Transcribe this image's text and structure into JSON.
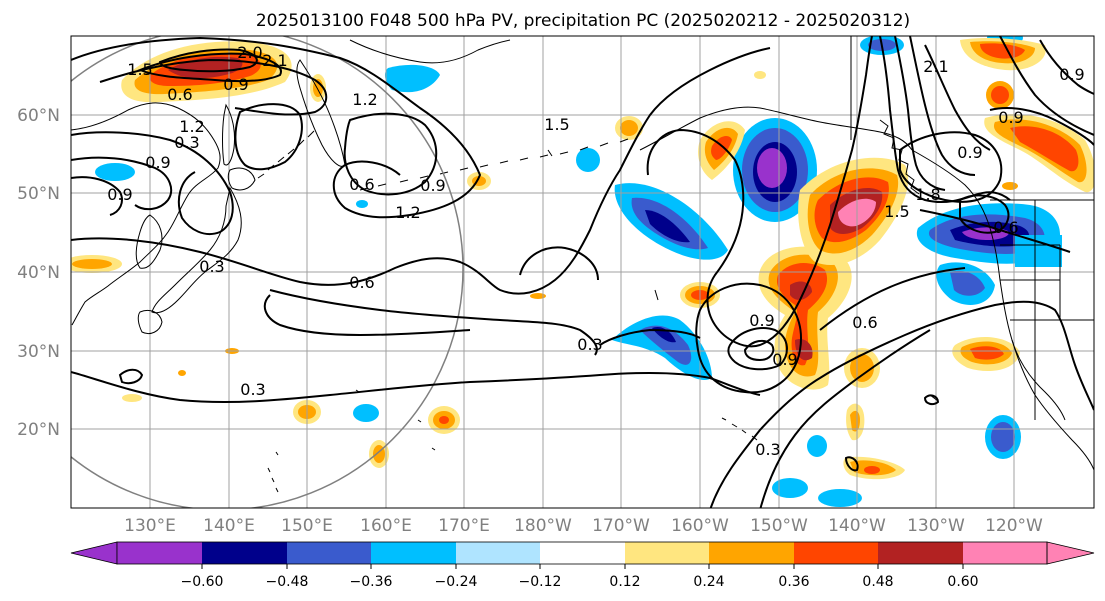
{
  "title": "2025013100 F048 500 hPa PV, precipitation PC (2025020212 - 2025020312)",
  "map": {
    "lat_ticks": [
      "60°N",
      "50°N",
      "40°N",
      "30°N",
      "20°N"
    ],
    "lon_ticks": [
      "130°E",
      "140°E",
      "150°E",
      "160°E",
      "170°E",
      "180°W",
      "170°W",
      "160°W",
      "150°W",
      "140°W",
      "130°W",
      "120°W"
    ],
    "gridlines": true,
    "contour_labels": [
      "1.5",
      "2.0",
      "2.1",
      "0.6",
      "0.9",
      "1.2",
      "0.3",
      "0.9",
      "0.9",
      "0.6",
      "1.2",
      "0.9",
      "0.3",
      "0.6",
      "0.3",
      "0.3",
      "1.5",
      "0.6",
      "0.9",
      "0.9",
      "1.5",
      "2.1",
      "1.8",
      "0.9",
      "0.9",
      "0.9",
      "0.6",
      "0.3",
      "1.2"
    ],
    "colors": {
      "land_outline": "#000000",
      "grid": "#a0a0a0",
      "circle": "#808080",
      "contour": "#000000"
    }
  },
  "colorbar": {
    "colors": [
      "#9932cc",
      "#00008b",
      "#3a5bcd",
      "#00bfff",
      "#afe4ff",
      "#ffffff",
      "#ffe680",
      "#ffa500",
      "#ff4500",
      "#b22222",
      "#ff82b4"
    ],
    "tick_labels": [
      "−0.60",
      "−0.48",
      "−0.36",
      "−0.24",
      "−0.12",
      "0.12",
      "0.24",
      "0.36",
      "0.48",
      "0.60"
    ],
    "extend": "both"
  }
}
